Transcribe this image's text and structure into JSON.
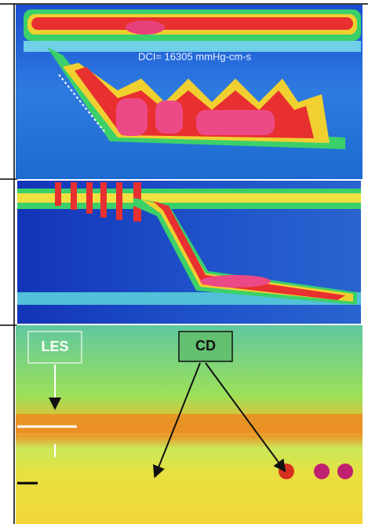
{
  "annotations": {
    "dci": "DCI= 16305 mmHg-cm-s",
    "les": "LES",
    "cd": "CD"
  }
}
